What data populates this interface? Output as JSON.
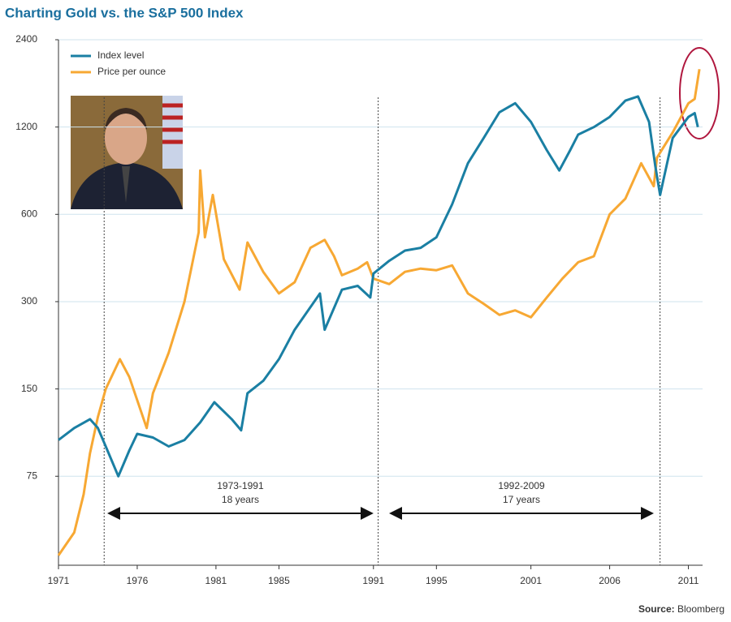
{
  "chart_data": {
    "type": "line",
    "title": "Charting Gold vs. the S&P 500 Index",
    "source": {
      "label": "Source:",
      "name": "Bloomberg"
    },
    "log_scale": true,
    "grid": true,
    "legend": "top-left",
    "xlim": [
      1971,
      2011.9
    ],
    "xticks": [
      1971,
      1976,
      1981,
      1985,
      1991,
      1995,
      2001,
      2006,
      2011
    ],
    "ylim": [
      37,
      2400
    ],
    "yticks": [
      75,
      150,
      300,
      600,
      1200,
      2400
    ],
    "markers": [
      1973.9,
      1991.3,
      2009.2
    ],
    "periods": [
      {
        "label": "1973-1991",
        "duration": "18 years",
        "from": 1974.3,
        "to": 1990.8
      },
      {
        "label": "1992-2009",
        "duration": "17 years",
        "from": 1992.2,
        "to": 2008.6
      }
    ],
    "series": [
      {
        "name": "Index level",
        "color": "#1a7fa3",
        "x": [
          1971,
          1972,
          1973,
          1973.5,
          1974,
          1974.8,
          1975.5,
          1976,
          1977,
          1978,
          1979,
          1980,
          1980.9,
          1982,
          1982.6,
          1983,
          1984,
          1985,
          1986,
          1987.6,
          1987.9,
          1989,
          1990,
          1990.8,
          1991,
          1992,
          1993,
          1994,
          1995,
          1996,
          1997,
          1998,
          1999,
          2000,
          2001,
          2002,
          2002.8,
          2003.5,
          2004,
          2005,
          2006,
          2007,
          2007.8,
          2008.5,
          2008.9,
          2009.2,
          2010,
          2011,
          2011.4,
          2011.6
        ],
        "values": [
          100,
          110,
          118,
          110,
          95,
          75,
          92,
          105,
          102,
          95,
          100,
          115,
          135,
          118,
          108,
          145,
          160,
          190,
          240,
          320,
          240,
          330,
          340,
          310,
          375,
          415,
          450,
          460,
          500,
          650,
          900,
          1100,
          1350,
          1450,
          1250,
          1000,
          850,
          1000,
          1130,
          1200,
          1300,
          1480,
          1530,
          1250,
          880,
          700,
          1100,
          1300,
          1340,
          1200
        ]
      },
      {
        "name": "Price per ounce",
        "color": "#f7a833",
        "x": [
          1971,
          1972,
          1972.6,
          1973,
          1973.5,
          1974,
          1974.9,
          1975.5,
          1976.6,
          1977,
          1978,
          1979,
          1979.9,
          1980,
          1980.3,
          1980.8,
          1981.5,
          1982.5,
          1983,
          1984,
          1985,
          1986,
          1987,
          1987.9,
          1988.5,
          1989,
          1990,
          1990.6,
          1991,
          1992,
          1993,
          1994,
          1995,
          1996,
          1997,
          1998,
          1999,
          2000,
          2001,
          2002,
          2003,
          2004,
          2005,
          2006,
          2007,
          2008,
          2008.8,
          2009,
          2010,
          2011,
          2011.4,
          2011.7
        ],
        "values": [
          40,
          48,
          65,
          90,
          120,
          150,
          190,
          165,
          110,
          145,
          200,
          300,
          520,
          850,
          500,
          700,
          420,
          330,
          480,
          380,
          320,
          350,
          460,
          490,
          430,
          370,
          390,
          410,
          360,
          345,
          380,
          390,
          385,
          400,
          320,
          295,
          270,
          280,
          265,
          310,
          360,
          410,
          430,
          600,
          680,
          900,
          750,
          940,
          1150,
          1450,
          1500,
          1900
        ]
      }
    ]
  }
}
